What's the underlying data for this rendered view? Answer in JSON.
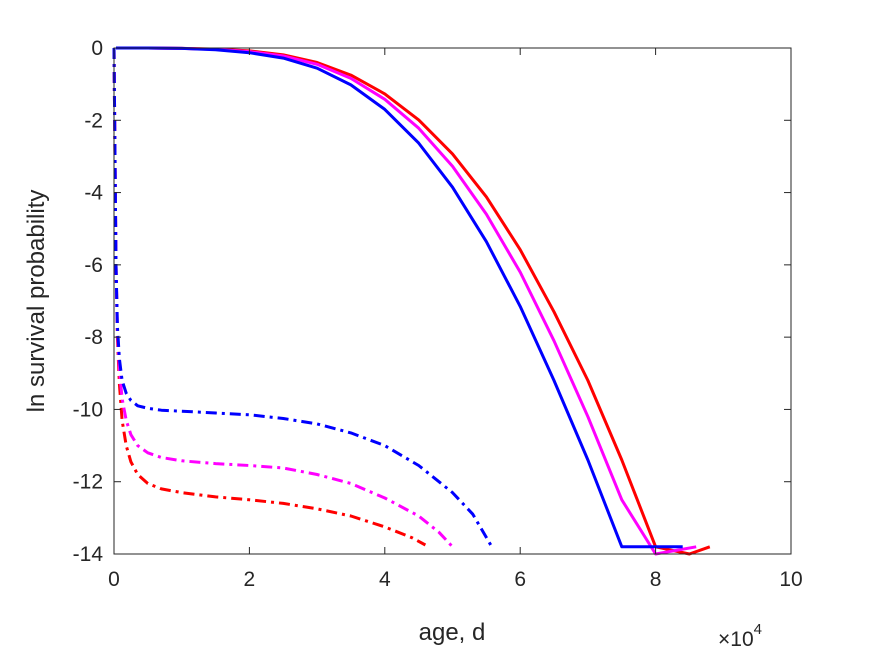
{
  "chart_data": {
    "type": "line",
    "title": "",
    "xlabel": "age, d",
    "ylabel": "ln survival probability",
    "x_exponent_label": {
      "base": "×10",
      "exponent": "4"
    },
    "xlim": [
      0,
      100000
    ],
    "ylim": [
      -14,
      0
    ],
    "x_ticks": [
      0,
      20000,
      40000,
      60000,
      80000,
      100000
    ],
    "x_tick_labels": [
      "0",
      "2",
      "4",
      "6",
      "8",
      "10"
    ],
    "y_ticks": [
      0,
      -2,
      -4,
      -6,
      -8,
      -10,
      -12,
      -14
    ],
    "y_tick_labels": [
      "0",
      "-2",
      "-4",
      "-6",
      "-8",
      "-10",
      "-12",
      "-14"
    ],
    "grid": false,
    "legend": "none",
    "series": [
      {
        "color": "#ff0000",
        "style": "solid",
        "x": [
          300,
          5000,
          10000,
          15000,
          20000,
          25000,
          30000,
          35000,
          40000,
          45000,
          50000,
          55000,
          60000,
          65000,
          70000,
          75000,
          80000,
          85000,
          88000
        ],
        "y": [
          0,
          0,
          -0.01,
          -0.03,
          -0.08,
          -0.19,
          -0.4,
          -0.75,
          -1.27,
          -1.99,
          -2.93,
          -4.12,
          -5.58,
          -7.3,
          -9.2,
          -11.4,
          -13.8,
          -16.5,
          -13.8
        ]
      },
      {
        "color": "#ff00ff",
        "style": "solid",
        "x": [
          300,
          5000,
          10000,
          15000,
          20000,
          25000,
          30000,
          35000,
          40000,
          45000,
          50000,
          55000,
          60000,
          65000,
          70000,
          75000,
          80000,
          86000
        ],
        "y": [
          0,
          0,
          -0.01,
          -0.04,
          -0.1,
          -0.22,
          -0.45,
          -0.84,
          -1.42,
          -2.22,
          -3.27,
          -4.6,
          -6.2,
          -8.1,
          -10.2,
          -12.5,
          -15.0,
          -13.8
        ]
      },
      {
        "color": "#0000ff",
        "style": "solid",
        "x": [
          300,
          5000,
          10000,
          15000,
          20000,
          25000,
          30000,
          35000,
          40000,
          45000,
          50000,
          55000,
          60000,
          65000,
          70000,
          75000,
          84000
        ],
        "y": [
          0,
          0,
          -0.01,
          -0.05,
          -0.13,
          -0.28,
          -0.56,
          -1.02,
          -1.7,
          -2.63,
          -3.85,
          -5.36,
          -7.15,
          -9.2,
          -11.4,
          -13.8,
          -13.8
        ]
      },
      {
        "color": "#ff0000",
        "style": "dashdot",
        "x": [
          0,
          150,
          300,
          500,
          800,
          1200,
          1800,
          2500,
          3500,
          5000,
          7000,
          10000,
          15000,
          20000,
          25000,
          30000,
          35000,
          40000,
          44000,
          46000
        ],
        "y": [
          0,
          -3,
          -6,
          -8,
          -9.3,
          -10.3,
          -11.0,
          -11.45,
          -11.8,
          -12.05,
          -12.2,
          -12.3,
          -12.42,
          -12.5,
          -12.6,
          -12.75,
          -12.95,
          -13.25,
          -13.55,
          -13.75
        ]
      },
      {
        "color": "#ff00ff",
        "style": "dashdot",
        "x": [
          0,
          150,
          300,
          500,
          800,
          1200,
          1800,
          2500,
          3500,
          5000,
          7000,
          10000,
          15000,
          20000,
          25000,
          30000,
          35000,
          40000,
          45000,
          48000,
          50000
        ],
        "y": [
          0,
          -3,
          -6,
          -7.8,
          -8.9,
          -9.7,
          -10.3,
          -10.7,
          -11.0,
          -11.2,
          -11.33,
          -11.42,
          -11.5,
          -11.55,
          -11.62,
          -11.8,
          -12.05,
          -12.45,
          -12.95,
          -13.4,
          -13.8
        ]
      },
      {
        "color": "#0000ff",
        "style": "dashdot",
        "x": [
          0,
          150,
          300,
          500,
          800,
          1200,
          1800,
          2500,
          3500,
          5000,
          7000,
          10000,
          15000,
          20000,
          25000,
          30000,
          35000,
          40000,
          45000,
          50000,
          53000,
          55800
        ],
        "y": [
          0,
          -3,
          -6,
          -7.7,
          -8.6,
          -9.2,
          -9.55,
          -9.75,
          -9.9,
          -9.97,
          -10.02,
          -10.05,
          -10.1,
          -10.15,
          -10.25,
          -10.4,
          -10.65,
          -11.0,
          -11.55,
          -12.3,
          -12.9,
          -13.8
        ]
      }
    ]
  }
}
